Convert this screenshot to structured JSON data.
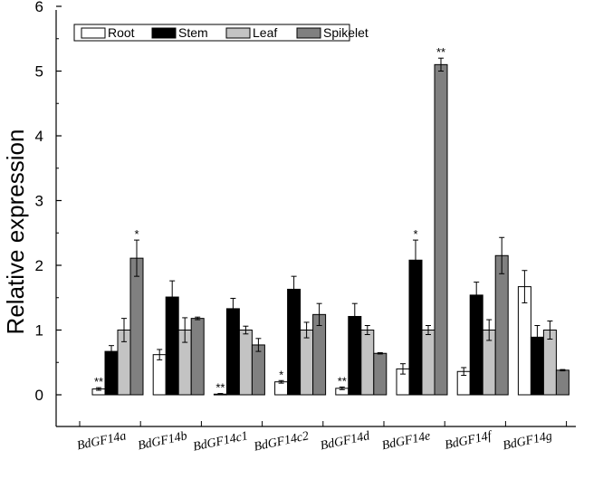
{
  "chart_data": {
    "type": "bar",
    "ylabel": "Relative expression",
    "xlabel": "",
    "ylim": [
      0,
      6
    ],
    "yticks": [
      0,
      1,
      2,
      3,
      4,
      5,
      6
    ],
    "grid": false,
    "legend_position": "top-left",
    "categories": [
      "BdGF14a",
      "BdGF14b",
      "BdGF14c1",
      "BdGF14c2",
      "BdGF14d",
      "BdGF14e",
      "BdGF14f",
      "BdGF14g"
    ],
    "series": [
      {
        "name": "Root",
        "color": "#ffffff",
        "values": [
          0.09,
          0.62,
          0.01,
          0.2,
          0.1,
          0.4,
          0.36,
          1.67
        ],
        "errors": [
          0.02,
          0.08,
          0.01,
          0.02,
          0.02,
          0.08,
          0.06,
          0.25
        ],
        "significance": [
          "**",
          "",
          "**",
          "*",
          "**",
          "",
          "",
          ""
        ]
      },
      {
        "name": "Stem",
        "color": "#000000",
        "values": [
          0.67,
          1.51,
          1.33,
          1.63,
          1.21,
          2.08,
          1.54,
          0.89
        ],
        "errors": [
          0.09,
          0.25,
          0.16,
          0.2,
          0.2,
          0.31,
          0.2,
          0.18
        ],
        "significance": [
          "",
          "",
          "",
          "",
          "",
          "*",
          "",
          ""
        ]
      },
      {
        "name": "Leaf",
        "color": "#c3c3c3",
        "values": [
          1.0,
          1.0,
          1.0,
          1.0,
          1.0,
          1.0,
          1.0,
          1.0
        ],
        "errors": [
          0.18,
          0.19,
          0.06,
          0.12,
          0.07,
          0.07,
          0.16,
          0.14
        ],
        "significance": [
          "",
          "",
          "",
          "",
          "",
          "",
          "",
          ""
        ]
      },
      {
        "name": "Spikelet",
        "color": "#808080",
        "values": [
          2.11,
          1.18,
          0.77,
          1.24,
          0.64,
          5.1,
          2.15,
          0.38
        ],
        "errors": [
          0.28,
          0.02,
          0.1,
          0.17,
          0.01,
          0.1,
          0.28,
          0.01
        ],
        "significance": [
          "*",
          "",
          "",
          "",
          "",
          "**",
          "",
          ""
        ]
      }
    ]
  }
}
